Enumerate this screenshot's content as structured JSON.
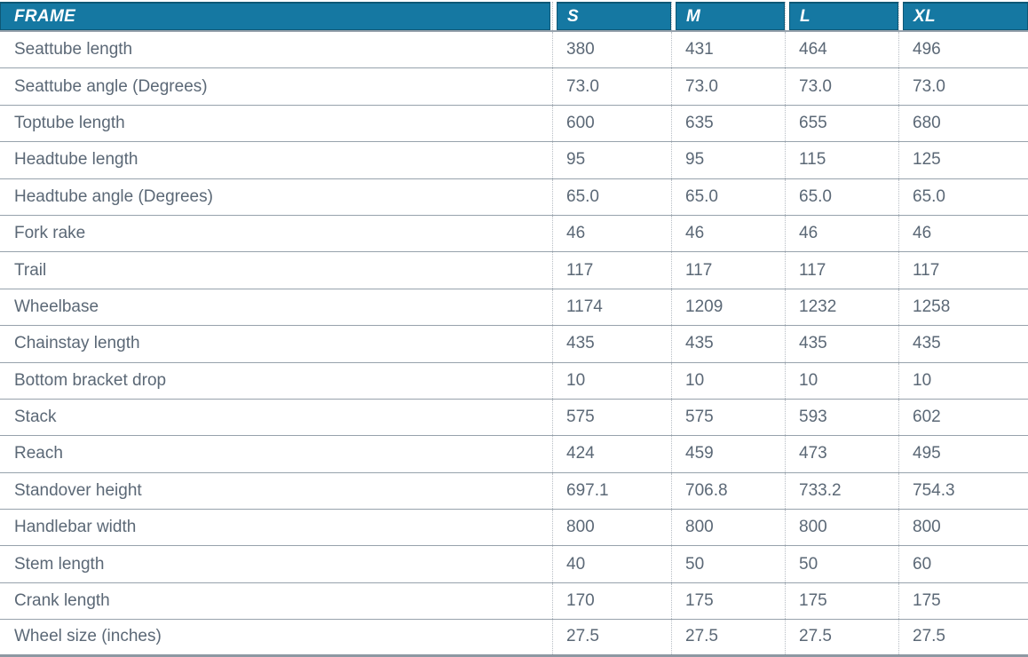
{
  "chart_data": {
    "type": "table",
    "title": "FRAME",
    "columns": [
      "FRAME",
      "S",
      "M",
      "L",
      "XL"
    ],
    "rows": [
      {
        "label": "Seattube length",
        "values": [
          "380",
          "431",
          "464",
          "496"
        ]
      },
      {
        "label": "Seattube angle (Degrees)",
        "values": [
          "73.0",
          "73.0",
          "73.0",
          "73.0"
        ]
      },
      {
        "label": "Toptube length",
        "values": [
          "600",
          "635",
          "655",
          "680"
        ]
      },
      {
        "label": "Headtube length",
        "values": [
          "95",
          "95",
          "115",
          "125"
        ]
      },
      {
        "label": "Headtube angle (Degrees)",
        "values": [
          "65.0",
          "65.0",
          "65.0",
          "65.0"
        ]
      },
      {
        "label": "Fork rake",
        "values": [
          "46",
          "46",
          "46",
          "46"
        ]
      },
      {
        "label": "Trail",
        "values": [
          "117",
          "117",
          "117",
          "117"
        ]
      },
      {
        "label": "Wheelbase",
        "values": [
          "1174",
          "1209",
          "1232",
          "1258"
        ]
      },
      {
        "label": "Chainstay length",
        "values": [
          "435",
          "435",
          "435",
          "435"
        ]
      },
      {
        "label": "Bottom bracket drop",
        "values": [
          "10",
          "10",
          "10",
          "10"
        ]
      },
      {
        "label": "Stack",
        "values": [
          "575",
          "575",
          "593",
          "602"
        ]
      },
      {
        "label": "Reach",
        "values": [
          "424",
          "459",
          "473",
          "495"
        ]
      },
      {
        "label": "Standover height",
        "values": [
          "697.1",
          "706.8",
          "733.2",
          "754.3"
        ]
      },
      {
        "label": "Handlebar width",
        "values": [
          "800",
          "800",
          "800",
          "800"
        ]
      },
      {
        "label": "Stem length",
        "values": [
          "40",
          "50",
          "50",
          "60"
        ]
      },
      {
        "label": "Crank length",
        "values": [
          "170",
          "175",
          "175",
          "175"
        ]
      },
      {
        "label": "Wheel size (inches)",
        "values": [
          "27.5",
          "27.5",
          "27.5",
          "27.5"
        ]
      }
    ],
    "layout_hints": {
      "grid": "horizontal solid separators, vertical dotted separators",
      "header_style": "teal bar, white bold italic labels"
    }
  },
  "colors": {
    "header_bg": "#1578a2",
    "header_edge": "#0e5876",
    "header_text": "#ffffff",
    "body_text": "#5b6876",
    "row_separator": "#97a2ac",
    "column_dotted": "#b7bdc4"
  }
}
